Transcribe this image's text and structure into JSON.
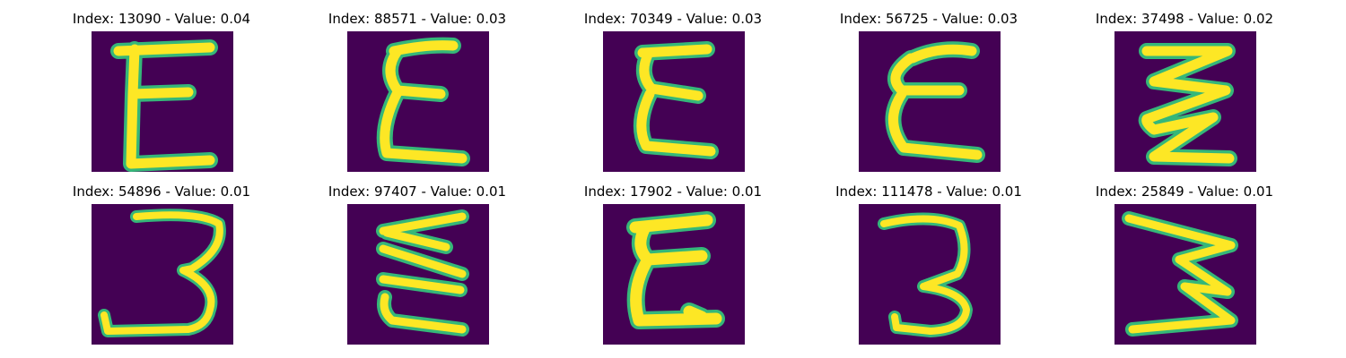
{
  "figure": {
    "panels": [
      {
        "title": "Index: 13090 - Value: 0.04",
        "glyph": "letter-E"
      },
      {
        "title": "Index: 88571 - Value: 0.03",
        "glyph": "letter-E"
      },
      {
        "title": "Index: 70349 - Value: 0.03",
        "glyph": "letter-E"
      },
      {
        "title": "Index: 56725 - Value: 0.03",
        "glyph": "letter-E"
      },
      {
        "title": "Index: 37498 - Value: 0.02",
        "glyph": "letter-E"
      },
      {
        "title": "Index: 54896 - Value: 0.01",
        "glyph": "digit-3"
      },
      {
        "title": "Index: 97407 - Value: 0.01",
        "glyph": "letter-E"
      },
      {
        "title": "Index: 17902 - Value: 0.01",
        "glyph": "letter-E"
      },
      {
        "title": "Index: 111478 - Value: 0.01",
        "glyph": "digit-3"
      },
      {
        "title": "Index: 25849 - Value: 0.01",
        "glyph": "letter-E"
      }
    ],
    "colors": {
      "background": "#440154",
      "stroke": "#fde725",
      "edge": "#35b779"
    }
  }
}
